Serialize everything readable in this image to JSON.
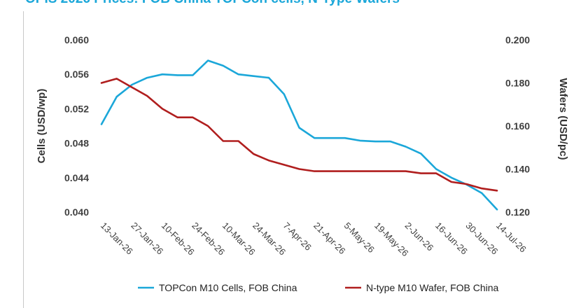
{
  "chart_data": {
    "type": "line",
    "title": "OPIS 2026 Prices: FOB China TOPCon cells, N-Type Wafers",
    "x": [
      "13-Jan-26",
      "20-Jan-26",
      "27-Jan-26",
      "3-Feb-26",
      "10-Feb-26",
      "17-Feb-26",
      "24-Feb-26",
      "3-Mar-26",
      "10-Mar-26",
      "17-Mar-26",
      "24-Mar-26",
      "31-Mar-26",
      "7-Apr-26",
      "14-Apr-26",
      "21-Apr-26",
      "28-Apr-26",
      "5-May-26",
      "12-May-26",
      "19-May-26",
      "26-May-26",
      "2-Jun-26",
      "9-Jun-26",
      "16-Jun-26",
      "23-Jun-26",
      "30-Jun-26",
      "7-Jul-26",
      "14-Jul-26"
    ],
    "x_tick_labels": [
      "13-Jan-26",
      "27-Jan-26",
      "10-Feb-26",
      "24-Feb-26",
      "10-Mar-26",
      "24-Mar-26",
      "7-Apr-26",
      "21-Apr-26",
      "5-May-26",
      "19-May-26",
      "2-Jun-26",
      "16-Jun-26",
      "30-Jun-26",
      "14-Jul-26"
    ],
    "ylabel_left": "Cells (USD/wp)",
    "ylabel_right": "Wafers (USD/pc)",
    "ylim_left": [
      0.04,
      0.06
    ],
    "ylim_right": [
      0.12,
      0.2
    ],
    "yticks_left": [
      "0.040",
      "0.044",
      "0.048",
      "0.052",
      "0.056",
      "0.060"
    ],
    "yticks_right": [
      "0.120",
      "0.140",
      "0.160",
      "0.180",
      "0.200"
    ],
    "grid": false,
    "legend_position": "bottom",
    "series": [
      {
        "name": "TOPCon M10 Cells, FOB China",
        "axis": "left",
        "color": "#1ba7d9",
        "values": [
          0.0502,
          0.0534,
          0.0548,
          0.0556,
          0.056,
          0.0559,
          0.0559,
          0.0576,
          0.057,
          0.056,
          0.0558,
          0.0556,
          0.0537,
          0.0498,
          0.0486,
          0.0486,
          0.0486,
          0.0483,
          0.0482,
          0.0482,
          0.0476,
          0.0468,
          0.045,
          0.044,
          0.0432,
          0.0422,
          0.0403
        ]
      },
      {
        "name": "N-type M10 Wafer, FOB China",
        "axis": "right",
        "color": "#b01e1e",
        "values": [
          0.18,
          0.182,
          0.178,
          0.174,
          0.168,
          0.164,
          0.164,
          0.16,
          0.153,
          0.153,
          0.147,
          0.144,
          0.142,
          0.14,
          0.139,
          0.139,
          0.139,
          0.139,
          0.139,
          0.139,
          0.139,
          0.138,
          0.138,
          0.134,
          0.133,
          0.131,
          0.13
        ]
      }
    ]
  }
}
